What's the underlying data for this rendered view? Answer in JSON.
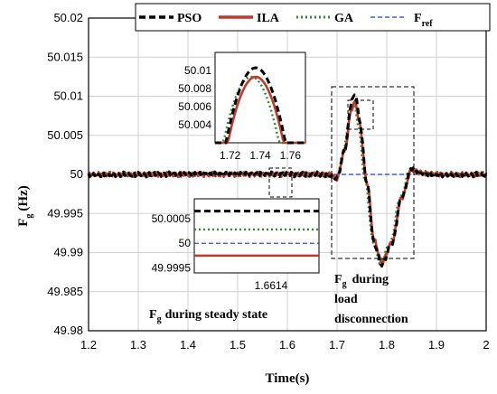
{
  "chart_data": {
    "type": "line",
    "xlabel": "Time(s)",
    "ylabel": "F",
    "ylabel_sub": "g",
    "ylabel_unit": "(Hz)",
    "xlim": [
      1.2,
      2.0
    ],
    "ylim": [
      49.98,
      50.02
    ],
    "xticks": [
      "1.2",
      "1.3",
      "1.4",
      "1.5",
      "1.6",
      "1.7",
      "1.8",
      "1.9",
      "2"
    ],
    "yticks": [
      "49.98",
      "49.985",
      "49.99",
      "49.995",
      "50",
      "50.005",
      "50.01",
      "50.015",
      "50.02"
    ],
    "grid": true,
    "legend_position": "top",
    "series": [
      {
        "name": "PSO",
        "color": "#000000",
        "style": "dash",
        "points": [
          [
            1.2,
            50.0
          ],
          [
            1.68,
            50.0
          ],
          [
            1.7,
            49.9995
          ],
          [
            1.715,
            50.003
          ],
          [
            1.73,
            50.0095
          ],
          [
            1.737,
            50.0103
          ],
          [
            1.745,
            50.007
          ],
          [
            1.76,
            49.999
          ],
          [
            1.775,
            49.991
          ],
          [
            1.79,
            49.9885
          ],
          [
            1.81,
            49.991
          ],
          [
            1.83,
            49.997
          ],
          [
            1.85,
            50.0008
          ],
          [
            1.87,
            50.0002
          ],
          [
            1.9,
            50.0
          ],
          [
            2.0,
            50.0
          ]
        ]
      },
      {
        "name": "ILA",
        "color": "#c0392b",
        "style": "solid",
        "points": [
          [
            1.2,
            50.0
          ],
          [
            1.68,
            50.0
          ],
          [
            1.7,
            49.9995
          ],
          [
            1.715,
            50.003
          ],
          [
            1.73,
            50.0085
          ],
          [
            1.737,
            50.0093
          ],
          [
            1.745,
            50.0065
          ],
          [
            1.76,
            49.999
          ],
          [
            1.775,
            49.9915
          ],
          [
            1.79,
            49.9887
          ],
          [
            1.81,
            49.9912
          ],
          [
            1.83,
            49.997
          ],
          [
            1.85,
            50.0006
          ],
          [
            1.87,
            50.0002
          ],
          [
            1.9,
            50.0
          ],
          [
            2.0,
            50.0
          ]
        ]
      },
      {
        "name": "GA",
        "color": "#2e8b2e",
        "style": "dot",
        "points": [
          [
            1.2,
            50.0
          ],
          [
            1.68,
            50.0
          ],
          [
            1.7,
            49.9995
          ],
          [
            1.713,
            50.003
          ],
          [
            1.728,
            50.0087
          ],
          [
            1.734,
            50.0093
          ],
          [
            1.742,
            50.0065
          ],
          [
            1.757,
            49.999
          ],
          [
            1.772,
            49.9915
          ],
          [
            1.787,
            49.9887
          ],
          [
            1.807,
            49.9912
          ],
          [
            1.827,
            49.997
          ],
          [
            1.847,
            50.0006
          ],
          [
            1.867,
            50.0002
          ],
          [
            1.9,
            50.0
          ],
          [
            2.0,
            50.0
          ]
        ]
      },
      {
        "name": "Fref",
        "color": "#1f3fbf",
        "style": "dash-thin",
        "points": [
          [
            1.2,
            50.0
          ],
          [
            2.0,
            50.0
          ]
        ]
      }
    ],
    "inset_peak": {
      "xlim": [
        1.71,
        1.77
      ],
      "ylim": [
        50.002,
        50.012
      ],
      "xticks": [
        "1.72",
        "1.74",
        "1.76"
      ],
      "yticks": [
        "50.01",
        "50.008",
        "50.006",
        "50.004"
      ]
    },
    "inset_steady": {
      "yticks": [
        "50.0005",
        "50",
        "49.9995"
      ],
      "xtick": "1.6614",
      "levels": {
        "PSO": 50.00065,
        "GA": 50.00028,
        "Fref": 50.0,
        "ILA": 49.99975
      }
    },
    "annotations": {
      "steady_prefix": "F",
      "steady_sub": "g",
      "steady_text": "during steady state",
      "load_prefix": "F",
      "load_sub": "g",
      "load_line1": "during",
      "load_line2": "load",
      "load_line3": "disconnection"
    },
    "legend": {
      "pso": "PSO",
      "ila": "ILA",
      "ga": "GA",
      "fref": "F",
      "fref_sub": "ref"
    }
  }
}
